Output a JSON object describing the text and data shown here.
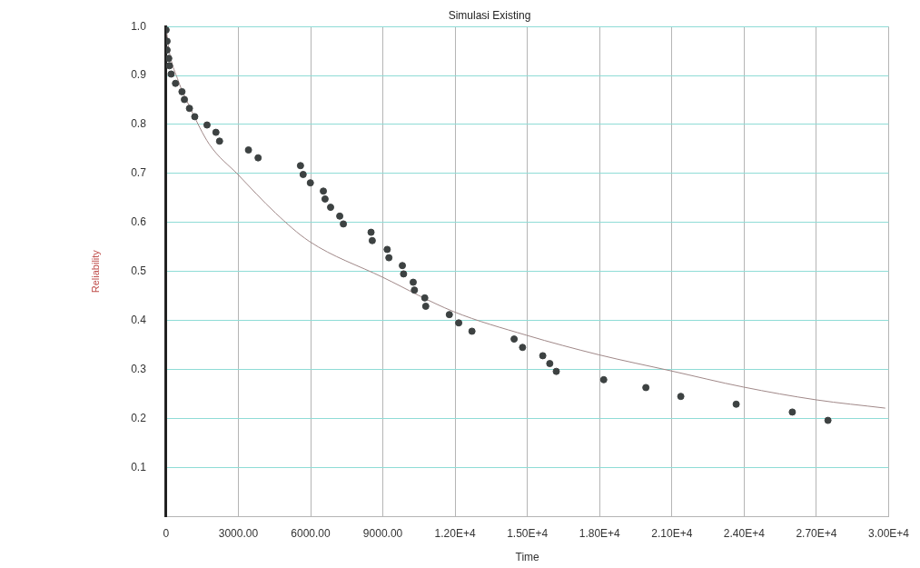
{
  "chart_data": {
    "type": "scatter",
    "title": "Simulasi Existing",
    "xlabel": "Time",
    "ylabel": "Reliability",
    "xlim": [
      0,
      30000
    ],
    "ylim": [
      0,
      1
    ],
    "xticks": [
      0,
      {
        "value": 3000,
        "label": "3000.00"
      },
      {
        "value": 6000,
        "label": "6000.00"
      },
      {
        "value": 9000,
        "label": "9000.00"
      },
      {
        "value": 12000,
        "label": "1.20E+4"
      },
      {
        "value": 15000,
        "label": "1.50E+4"
      },
      {
        "value": 18000,
        "label": "1.80E+4"
      },
      {
        "value": 21000,
        "label": "2.10E+4"
      },
      {
        "value": 24000,
        "label": "2.40E+4"
      },
      {
        "value": 27000,
        "label": "2.70E+4"
      },
      {
        "value": 30000,
        "label": "3.00E+4"
      }
    ],
    "yticks": [
      0.1,
      0.2,
      0.3,
      0.4,
      0.5,
      0.6,
      0.7,
      0.8,
      0.9,
      {
        "value": 1,
        "label": "1.0"
      }
    ],
    "grid": true,
    "marker": "circle",
    "series": [
      {
        "color": "#3d4242",
        "x": [
          0,
          40,
          40,
          110,
          140,
          210,
          390,
          660,
          760,
          970,
          1190,
          1700,
          2070,
          2220,
          3420,
          3820,
          5580,
          5690,
          5990,
          6530,
          6600,
          6830,
          7210,
          7360,
          8510,
          8560,
          9180,
          9250,
          9810,
          9860,
          10260,
          10310,
          10740,
          10780,
          11760,
          12150,
          12700,
          14450,
          14800,
          15640,
          15930,
          16200,
          18170,
          19920,
          21370,
          23670,
          26000,
          27480
        ],
        "values": [
          0.993,
          0.97,
          0.952,
          0.935,
          0.92,
          0.903,
          0.884,
          0.867,
          0.851,
          0.833,
          0.816,
          0.799,
          0.784,
          0.766,
          0.748,
          0.732,
          0.716,
          0.698,
          0.681,
          0.664,
          0.648,
          0.631,
          0.613,
          0.597,
          0.58,
          0.563,
          0.545,
          0.528,
          0.512,
          0.495,
          0.478,
          0.462,
          0.446,
          0.429,
          0.412,
          0.395,
          0.378,
          0.362,
          0.345,
          0.328,
          0.312,
          0.296,
          0.279,
          0.263,
          0.245,
          0.229,
          0.213,
          0.196
        ]
      },
      {
        "type": "line",
        "color": "#a08888",
        "marker": "none",
        "x": [
          0,
          100,
          500,
          1000,
          1790,
          2980,
          4550,
          5930,
          9000,
          11940,
          14950,
          17960,
          20970,
          23970,
          26980,
          29860
        ],
        "values": [
          1,
          0.958,
          0.89,
          0.834,
          0.76,
          0.698,
          0.619,
          0.562,
          0.488,
          0.418,
          0.37,
          0.33,
          0.297,
          0.264,
          0.238,
          0.221
        ]
      }
    ]
  }
}
